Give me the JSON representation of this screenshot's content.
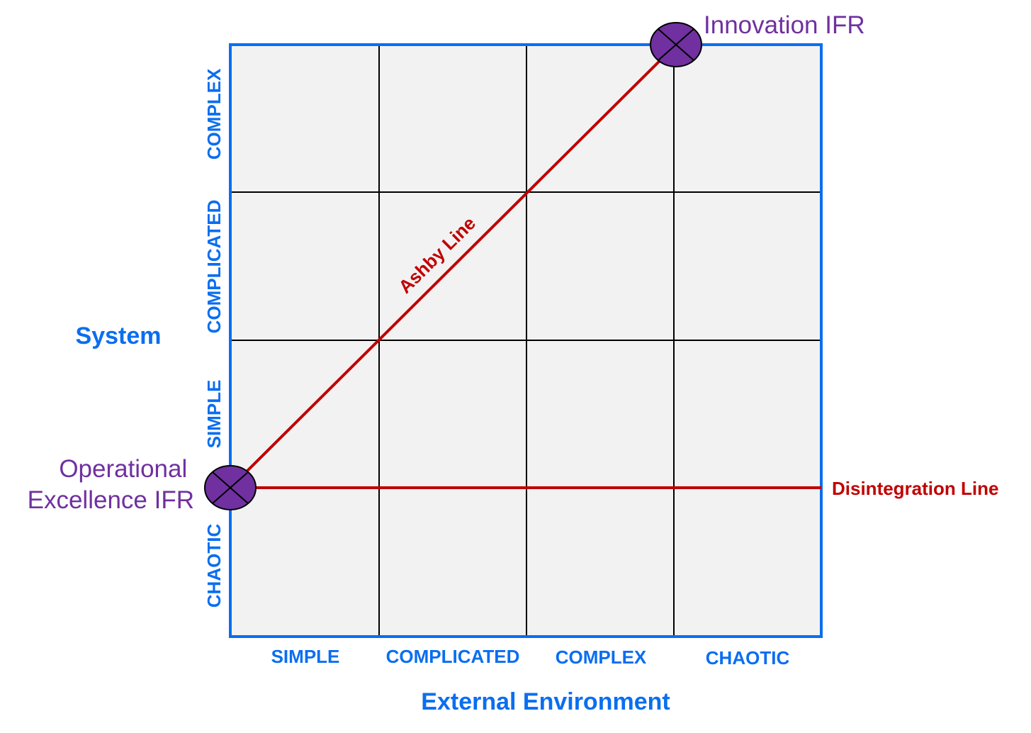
{
  "colors": {
    "blue": "#0a6ef0",
    "purple": "#7030a0",
    "red": "#c00000",
    "grid": "#000000",
    "cell_fill": "#f2f2f2"
  },
  "y_axis": {
    "title": "System",
    "categories": [
      "CHAOTIC",
      "SIMPLE",
      "COMPLICATED",
      "COMPLEX"
    ]
  },
  "x_axis": {
    "title": "External Environment",
    "categories": [
      "SIMPLE",
      "COMPLICATED",
      "COMPLEX",
      "CHAOTIC"
    ]
  },
  "lines": {
    "ashby": "Ashby Line",
    "disintegration": "Disintegration Line"
  },
  "points": {
    "operational": [
      "Operational",
      "Excellence IFR"
    ],
    "innovation": "Innovation IFR"
  }
}
